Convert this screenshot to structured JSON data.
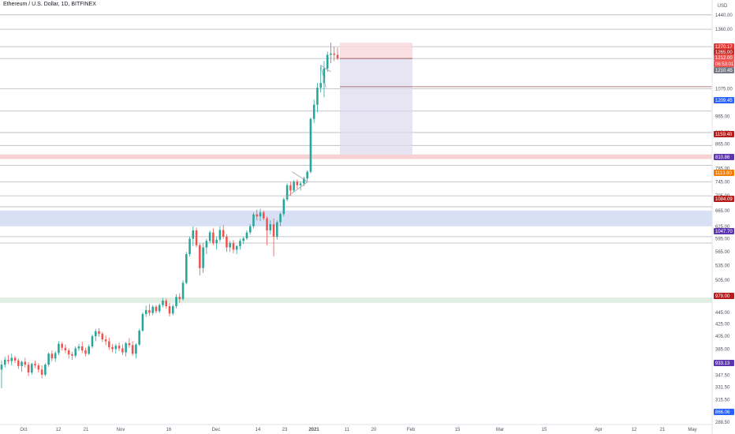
{
  "header": {
    "title": "Ethereum / U.S. Dollar, 1D, BITFINEX"
  },
  "colors": {
    "up": "#26a69a",
    "down": "#ef5350",
    "hline": "#b2b5be",
    "red_zone": "#f5c2c6",
    "blue_zone": "#c9d6f2",
    "green_zone": "#d6ead8",
    "projection": "#ddd8ef",
    "projection_top": "#f8d7d9"
  },
  "chart_data": {
    "type": "candlestick",
    "title": "Ethereum / U.S. Dollar, 1D, BITFINEX",
    "currency": "USD",
    "x_labels": [
      "Oct",
      "12",
      "21",
      "Nov",
      "16",
      "Dec",
      "14",
      "23",
      "2021",
      "11",
      "20",
      "Feb",
      "15",
      "Mar",
      "15",
      "Apr",
      "12",
      "21",
      "May"
    ],
    "y_labels": [
      "1440.00",
      "1360.00",
      "1275.00",
      "1175.00",
      "1075.00",
      "965.00",
      "905.00",
      "865.00",
      "825.00",
      "785.00",
      "745.00",
      "705.00",
      "665.00",
      "625.00",
      "595.00",
      "565.00",
      "535.00",
      "505.00",
      "475.00",
      "445.00",
      "425.00",
      "405.00",
      "385.00",
      "365.00",
      "347.50",
      "331.50",
      "315.50",
      "301.50",
      "288.50"
    ],
    "price_badges": [
      {
        "text": "1270.17",
        "color": "#e53935"
      },
      {
        "text": "1265.00",
        "color": "#c62828"
      },
      {
        "text": "1212.00",
        "color": "#ef5350"
      },
      {
        "text": "06:53:01",
        "color": "#ef5350"
      },
      {
        "text": "1210.45",
        "color": "#787b86"
      },
      {
        "text": "1209.45",
        "color": "#2962ff"
      },
      {
        "text": "1159.40",
        "color": "#b71c1c"
      },
      {
        "text": "810.86",
        "color": "#5e35b1"
      },
      {
        "text": "1113.60",
        "color": "#f57c00"
      },
      {
        "text": "1084.09",
        "color": "#b71c1c"
      },
      {
        "text": "1047.70",
        "color": "#5e35b1"
      },
      {
        "text": "979.00",
        "color": "#b71c1c"
      },
      {
        "text": "933.13",
        "color": "#5e35b1"
      },
      {
        "text": "866.06",
        "color": "#2962ff"
      }
    ],
    "horizontal_levels": [
      1440,
      1360,
      1270,
      1212,
      1075,
      985,
      905,
      860,
      795,
      745,
      705,
      675,
      600,
      585
    ],
    "zones": [
      {
        "name": "red",
        "from": 815,
        "to": 830
      },
      {
        "name": "blue",
        "from": 625,
        "to": 665
      },
      {
        "name": "green",
        "from": 462,
        "to": 472
      }
    ],
    "candles": [
      [
        355,
        368,
        330,
        362
      ],
      [
        362,
        373,
        358,
        369
      ],
      [
        369,
        376,
        363,
        367
      ],
      [
        367,
        378,
        361,
        372
      ],
      [
        372,
        375,
        364,
        368
      ],
      [
        368,
        371,
        356,
        360
      ],
      [
        360,
        368,
        352,
        366
      ],
      [
        366,
        372,
        358,
        362
      ],
      [
        362,
        366,
        346,
        351
      ],
      [
        351,
        365,
        348,
        363
      ],
      [
        363,
        368,
        357,
        361
      ],
      [
        361,
        364,
        351,
        355
      ],
      [
        355,
        361,
        343,
        348
      ],
      [
        348,
        364,
        346,
        362
      ],
      [
        362,
        380,
        359,
        378
      ],
      [
        378,
        383,
        367,
        371
      ],
      [
        371,
        382,
        366,
        379
      ],
      [
        379,
        397,
        376,
        393
      ],
      [
        393,
        396,
        383,
        387
      ],
      [
        387,
        392,
        379,
        383
      ],
      [
        383,
        386,
        371,
        377
      ],
      [
        377,
        381,
        369,
        375
      ],
      [
        375,
        389,
        372,
        386
      ],
      [
        386,
        393,
        382,
        389
      ],
      [
        389,
        396,
        379,
        383
      ],
      [
        383,
        387,
        374,
        378
      ],
      [
        378,
        392,
        376,
        389
      ],
      [
        389,
        408,
        386,
        405
      ],
      [
        405,
        417,
        397,
        413
      ],
      [
        413,
        418,
        404,
        409
      ],
      [
        409,
        412,
        396,
        400
      ],
      [
        400,
        406,
        391,
        397
      ],
      [
        397,
        403,
        384,
        388
      ],
      [
        388,
        393,
        380,
        385
      ],
      [
        385,
        393,
        378,
        390
      ],
      [
        390,
        395,
        382,
        386
      ],
      [
        386,
        392,
        376,
        380
      ],
      [
        380,
        396,
        374,
        394
      ],
      [
        394,
        402,
        387,
        391
      ],
      [
        391,
        397,
        375,
        378
      ],
      [
        378,
        394,
        371,
        392
      ],
      [
        392,
        417,
        390,
        414
      ],
      [
        414,
        445,
        412,
        442
      ],
      [
        442,
        457,
        437,
        449
      ],
      [
        449,
        460,
        439,
        444
      ],
      [
        444,
        458,
        440,
        455
      ],
      [
        455,
        458,
        443,
        447
      ],
      [
        447,
        461,
        444,
        458
      ],
      [
        458,
        471,
        454,
        466
      ],
      [
        466,
        470,
        452,
        456
      ],
      [
        456,
        462,
        438,
        443
      ],
      [
        443,
        459,
        440,
        456
      ],
      [
        456,
        478,
        452,
        473
      ],
      [
        473,
        480,
        462,
        469
      ],
      [
        469,
        505,
        466,
        500
      ],
      [
        500,
        565,
        497,
        560
      ],
      [
        560,
        600,
        555,
        595
      ],
      [
        595,
        625,
        578,
        615
      ],
      [
        615,
        622,
        575,
        580
      ],
      [
        580,
        585,
        515,
        530
      ],
      [
        530,
        585,
        520,
        575
      ],
      [
        575,
        595,
        560,
        590
      ],
      [
        590,
        615,
        585,
        610
      ],
      [
        610,
        620,
        580,
        585
      ],
      [
        585,
        600,
        570,
        593
      ],
      [
        593,
        625,
        588,
        616
      ],
      [
        616,
        628,
        595,
        600
      ],
      [
        600,
        606,
        565,
        575
      ],
      [
        575,
        590,
        565,
        585
      ],
      [
        585,
        592,
        562,
        570
      ],
      [
        570,
        581,
        560,
        578
      ],
      [
        578,
        595,
        570,
        590
      ],
      [
        590,
        600,
        583,
        596
      ],
      [
        596,
        615,
        592,
        610
      ],
      [
        610,
        630,
        605,
        625
      ],
      [
        625,
        660,
        620,
        655
      ],
      [
        655,
        668,
        640,
        650
      ],
      [
        650,
        670,
        638,
        660
      ],
      [
        660,
        665,
        640,
        645
      ],
      [
        645,
        650,
        580,
        615
      ],
      [
        615,
        640,
        605,
        630
      ],
      [
        630,
        645,
        555,
        600
      ],
      [
        600,
        640,
        593,
        635
      ],
      [
        635,
        660,
        625,
        656
      ],
      [
        656,
        700,
        650,
        695
      ],
      [
        695,
        740,
        690,
        735
      ],
      [
        735,
        745,
        705,
        720
      ],
      [
        720,
        750,
        715,
        745
      ],
      [
        745,
        752,
        725,
        735
      ],
      [
        735,
        745,
        720,
        740
      ],
      [
        740,
        760,
        732,
        755
      ],
      [
        755,
        780,
        748,
        775
      ],
      [
        775,
        960,
        770,
        955
      ],
      [
        955,
        1030,
        940,
        1010
      ],
      [
        1010,
        1100,
        980,
        1080
      ],
      [
        1080,
        1180,
        1060,
        1100
      ],
      [
        1100,
        1200,
        1040,
        1165
      ],
      [
        1165,
        1245,
        1150,
        1230
      ],
      [
        1230,
        1290,
        1190,
        1236
      ],
      [
        1236,
        1270,
        1200,
        1230
      ],
      [
        1230,
        1265,
        1205,
        1212
      ]
    ]
  }
}
